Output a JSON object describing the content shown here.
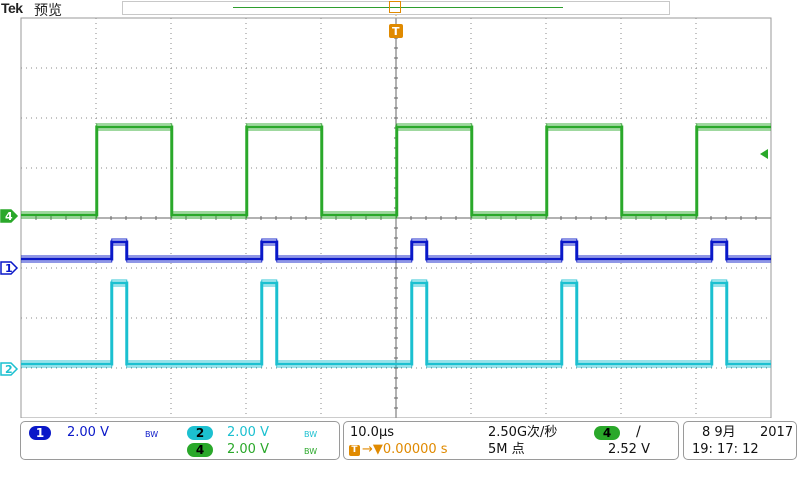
{
  "header": {
    "brand": "Tek",
    "mode": "预览",
    "trigger_marker": "T"
  },
  "colors": {
    "ch1": "#0a18c8",
    "ch2": "#1cc0d0",
    "ch4": "#2aa82a",
    "grid": "#888888",
    "trigger": "#e08a00"
  },
  "channels": [
    {
      "id": "1",
      "label": "1",
      "scale": "2.00 V",
      "bw": "BW",
      "color": "#0a18c8"
    },
    {
      "id": "2",
      "label": "2",
      "scale": "2.00 V",
      "bw": "BW",
      "color": "#1cc0d0"
    },
    {
      "id": "4",
      "label": "4",
      "scale": "2.00 V",
      "bw": "BW",
      "color": "#2aa82a"
    }
  ],
  "timebase": {
    "horizontal_scale": "10.0µs",
    "sample_rate": "2.50G次/秒",
    "record_length": "5M 点",
    "trigger_position": "→▼0.00000 s",
    "trigger_icon": "T"
  },
  "trigger": {
    "source": "4",
    "slope_icon": "/",
    "level": "2.52 V"
  },
  "datetime": {
    "date": "8 9月",
    "year": "2017",
    "time": "19: 17: 12"
  },
  "waveforms": {
    "period_us": 20,
    "ch4_first_rise_us": 10.1,
    "ch4_duty": 0.5,
    "ch1_first_rise_us": 12.1,
    "ch1_pulse_width_us": 2.0,
    "ch2_first_rise_us": 12.1,
    "ch2_pulse_width_us": 2.0
  }
}
